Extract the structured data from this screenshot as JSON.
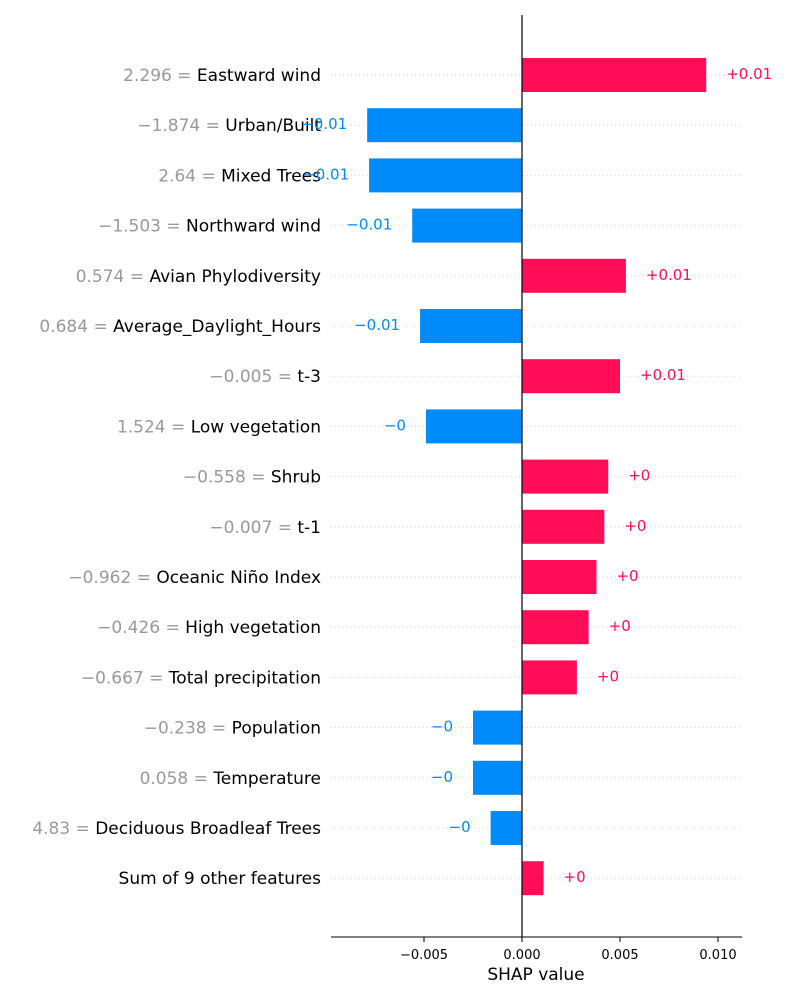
{
  "chart_data": {
    "type": "bar",
    "orientation": "horizontal",
    "xlabel": "SHAP value",
    "xlim": [
      -0.0097,
      0.0113
    ],
    "xticks": [
      {
        "value": -0.005,
        "label": "−0.005"
      },
      {
        "value": 0.0,
        "label": "0.000"
      },
      {
        "value": 0.005,
        "label": "0.005"
      },
      {
        "value": 0.01,
        "label": "0.010"
      }
    ],
    "colors": {
      "positive": "#ff0d57",
      "negative": "#008bfb",
      "feature_value": "#999999",
      "feature_name": "#000000",
      "gridline": "#cccccc"
    },
    "features": [
      {
        "value_text": "2.296 =",
        "name": "Eastward wind",
        "shap": 0.0094,
        "label": "+0.01"
      },
      {
        "value_text": "−1.874 =",
        "name": "Urban/Built",
        "shap": -0.0079,
        "label": "−0.01"
      },
      {
        "value_text": "2.64 =",
        "name": "Mixed Trees",
        "shap": -0.0078,
        "label": "−0.01"
      },
      {
        "value_text": "−1.503 =",
        "name": "Northward wind",
        "shap": -0.0056,
        "label": "−0.01"
      },
      {
        "value_text": "0.574 =",
        "name": "Avian Phylodiversity",
        "shap": 0.0053,
        "label": "+0.01"
      },
      {
        "value_text": "0.684 =",
        "name": "Average_Daylight_Hours",
        "shap": -0.0052,
        "label": "−0.01"
      },
      {
        "value_text": "−0.005 =",
        "name": "t-3",
        "shap": 0.005,
        "label": "+0.01"
      },
      {
        "value_text": "1.524 =",
        "name": "Low vegetation",
        "shap": -0.0049,
        "label": "−0"
      },
      {
        "value_text": "−0.558 =",
        "name": "Shrub",
        "shap": 0.0044,
        "label": "+0"
      },
      {
        "value_text": "−0.007 =",
        "name": "t-1",
        "shap": 0.0042,
        "label": "+0"
      },
      {
        "value_text": "−0.962 =",
        "name": "Oceanic Niño Index",
        "shap": 0.0038,
        "label": "+0"
      },
      {
        "value_text": "−0.426 =",
        "name": "High vegetation",
        "shap": 0.0034,
        "label": "+0"
      },
      {
        "value_text": "−0.667 =",
        "name": "Total precipitation",
        "shap": 0.0028,
        "label": "+0"
      },
      {
        "value_text": "−0.238 =",
        "name": "Population",
        "shap": -0.0025,
        "label": "−0"
      },
      {
        "value_text": "0.058 =",
        "name": "Temperature",
        "shap": -0.0025,
        "label": "−0"
      },
      {
        "value_text": "4.83 =",
        "name": "Deciduous Broadleaf Trees",
        "shap": -0.0016,
        "label": "−0"
      },
      {
        "value_text": "",
        "name": "Sum of 9 other features",
        "shap": 0.0011,
        "label": "+0"
      }
    ]
  }
}
